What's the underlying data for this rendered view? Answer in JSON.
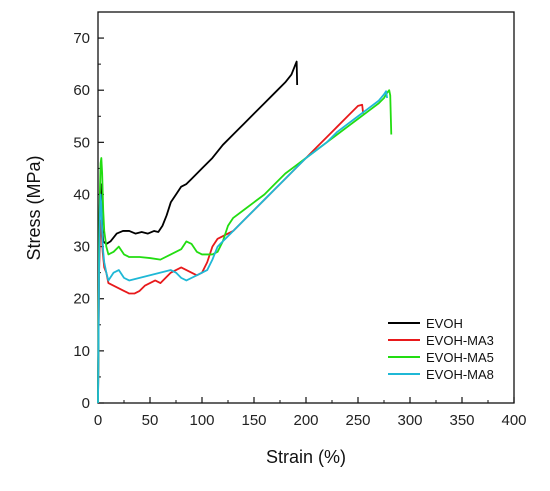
{
  "chart_data": {
    "type": "line",
    "xlabel": "Strain (%)",
    "ylabel": "Stress (MPa)",
    "xlim": [
      0,
      400
    ],
    "ylim": [
      0,
      75
    ],
    "x_ticks": [
      0,
      50,
      100,
      150,
      200,
      250,
      300,
      350,
      400
    ],
    "y_ticks": [
      0,
      10,
      20,
      30,
      40,
      50,
      60,
      70
    ],
    "x_tick_labels": [
      "0",
      "50",
      "100",
      "150",
      "200",
      "250",
      "300",
      "350",
      "400"
    ],
    "y_tick_labels": [
      "0",
      "10",
      "20",
      "30",
      "40",
      "50",
      "60",
      "70"
    ],
    "grid": false,
    "legend_position": "bottom-right",
    "series": [
      {
        "name": "EVOH",
        "color": "#000000",
        "points": [
          [
            0,
            0
          ],
          [
            0.5,
            12
          ],
          [
            1,
            28
          ],
          [
            1.8,
            38
          ],
          [
            2.5,
            42
          ],
          [
            3.2,
            40
          ],
          [
            4,
            34
          ],
          [
            5,
            31
          ],
          [
            8,
            30.5
          ],
          [
            12,
            31
          ],
          [
            18,
            32.5
          ],
          [
            24,
            33
          ],
          [
            30,
            33
          ],
          [
            36,
            32.5
          ],
          [
            42,
            32.8
          ],
          [
            48,
            32.5
          ],
          [
            54,
            33
          ],
          [
            58,
            32.8
          ],
          [
            62,
            34
          ],
          [
            66,
            36
          ],
          [
            70,
            38.5
          ],
          [
            75,
            40
          ],
          [
            80,
            41.5
          ],
          [
            85,
            42
          ],
          [
            90,
            43
          ],
          [
            100,
            45
          ],
          [
            110,
            47
          ],
          [
            120,
            49.5
          ],
          [
            130,
            51.5
          ],
          [
            140,
            53.5
          ],
          [
            150,
            55.5
          ],
          [
            160,
            57.5
          ],
          [
            170,
            59.5
          ],
          [
            180,
            61.5
          ],
          [
            186,
            63
          ],
          [
            190,
            65
          ],
          [
            191,
            65.5
          ],
          [
            191.5,
            61
          ]
        ]
      },
      {
        "name": "EVOH-MA3",
        "color": "#e8191b",
        "points": [
          [
            0,
            0
          ],
          [
            0.5,
            12
          ],
          [
            1,
            25
          ],
          [
            2,
            32
          ],
          [
            2.8,
            35
          ],
          [
            3.5,
            33
          ],
          [
            4.5,
            29
          ],
          [
            6,
            26
          ],
          [
            8,
            25
          ],
          [
            10,
            23
          ],
          [
            15,
            22.5
          ],
          [
            20,
            22
          ],
          [
            25,
            21.5
          ],
          [
            30,
            21
          ],
          [
            35,
            21
          ],
          [
            40,
            21.5
          ],
          [
            45,
            22.5
          ],
          [
            50,
            23
          ],
          [
            55,
            23.5
          ],
          [
            60,
            23
          ],
          [
            65,
            24
          ],
          [
            70,
            25
          ],
          [
            75,
            25.5
          ],
          [
            80,
            26
          ],
          [
            85,
            25.5
          ],
          [
            90,
            25
          ],
          [
            95,
            24.5
          ],
          [
            100,
            25
          ],
          [
            105,
            27
          ],
          [
            110,
            30
          ],
          [
            115,
            31.5
          ],
          [
            120,
            32
          ],
          [
            130,
            33
          ],
          [
            140,
            35
          ],
          [
            150,
            37
          ],
          [
            160,
            39
          ],
          [
            170,
            41
          ],
          [
            180,
            43
          ],
          [
            190,
            45
          ],
          [
            200,
            47
          ],
          [
            210,
            49
          ],
          [
            220,
            51
          ],
          [
            230,
            53
          ],
          [
            240,
            55
          ],
          [
            250,
            57
          ],
          [
            254,
            57.2
          ],
          [
            255,
            55.5
          ]
        ]
      },
      {
        "name": "EVOH-MA5",
        "color": "#22dd11",
        "points": [
          [
            0,
            0
          ],
          [
            0.5,
            15
          ],
          [
            1,
            30
          ],
          [
            1.8,
            40
          ],
          [
            2.5,
            46
          ],
          [
            3.2,
            47
          ],
          [
            4,
            44
          ],
          [
            5,
            37
          ],
          [
            6,
            33
          ],
          [
            8,
            30
          ],
          [
            10,
            28.5
          ],
          [
            15,
            29
          ],
          [
            20,
            30
          ],
          [
            25,
            28.5
          ],
          [
            30,
            28
          ],
          [
            40,
            28
          ],
          [
            50,
            27.8
          ],
          [
            60,
            27.5
          ],
          [
            70,
            28.5
          ],
          [
            80,
            29.5
          ],
          [
            85,
            31
          ],
          [
            90,
            30.5
          ],
          [
            95,
            29
          ],
          [
            100,
            28.5
          ],
          [
            110,
            28.5
          ],
          [
            115,
            29
          ],
          [
            120,
            31
          ],
          [
            125,
            34
          ],
          [
            130,
            35.5
          ],
          [
            140,
            37
          ],
          [
            150,
            38.5
          ],
          [
            160,
            40
          ],
          [
            170,
            42
          ],
          [
            180,
            44
          ],
          [
            190,
            45.5
          ],
          [
            200,
            47
          ],
          [
            210,
            48.5
          ],
          [
            220,
            50
          ],
          [
            230,
            51.5
          ],
          [
            240,
            53
          ],
          [
            250,
            54.5
          ],
          [
            260,
            56
          ],
          [
            270,
            57.5
          ],
          [
            275,
            58.5
          ],
          [
            278,
            59.5
          ],
          [
            280,
            60
          ],
          [
            281,
            59
          ],
          [
            282,
            51.5
          ]
        ]
      },
      {
        "name": "EVOH-MA8",
        "color": "#1fb8d6",
        "points": [
          [
            0,
            0
          ],
          [
            0.5,
            12
          ],
          [
            1,
            26
          ],
          [
            1.8,
            36
          ],
          [
            2.5,
            40
          ],
          [
            3.2,
            38
          ],
          [
            4,
            33
          ],
          [
            5,
            29
          ],
          [
            6,
            27
          ],
          [
            8,
            25
          ],
          [
            10,
            23.5
          ],
          [
            15,
            25
          ],
          [
            20,
            25.5
          ],
          [
            25,
            24
          ],
          [
            30,
            23.5
          ],
          [
            40,
            24
          ],
          [
            50,
            24.5
          ],
          [
            60,
            25
          ],
          [
            70,
            25.5
          ],
          [
            75,
            25
          ],
          [
            80,
            24
          ],
          [
            85,
            23.5
          ],
          [
            90,
            24
          ],
          [
            95,
            24.5
          ],
          [
            100,
            25
          ],
          [
            105,
            25.5
          ],
          [
            110,
            27.5
          ],
          [
            115,
            30
          ],
          [
            120,
            31
          ],
          [
            130,
            33
          ],
          [
            140,
            35
          ],
          [
            150,
            37
          ],
          [
            160,
            39
          ],
          [
            170,
            41
          ],
          [
            180,
            43
          ],
          [
            190,
            45
          ],
          [
            200,
            47
          ],
          [
            210,
            48.5
          ],
          [
            220,
            50
          ],
          [
            230,
            52
          ],
          [
            240,
            53.5
          ],
          [
            250,
            55
          ],
          [
            260,
            56.5
          ],
          [
            270,
            58
          ],
          [
            275,
            59.2
          ],
          [
            277,
            59.8
          ],
          [
            278,
            58.5
          ]
        ]
      }
    ]
  }
}
